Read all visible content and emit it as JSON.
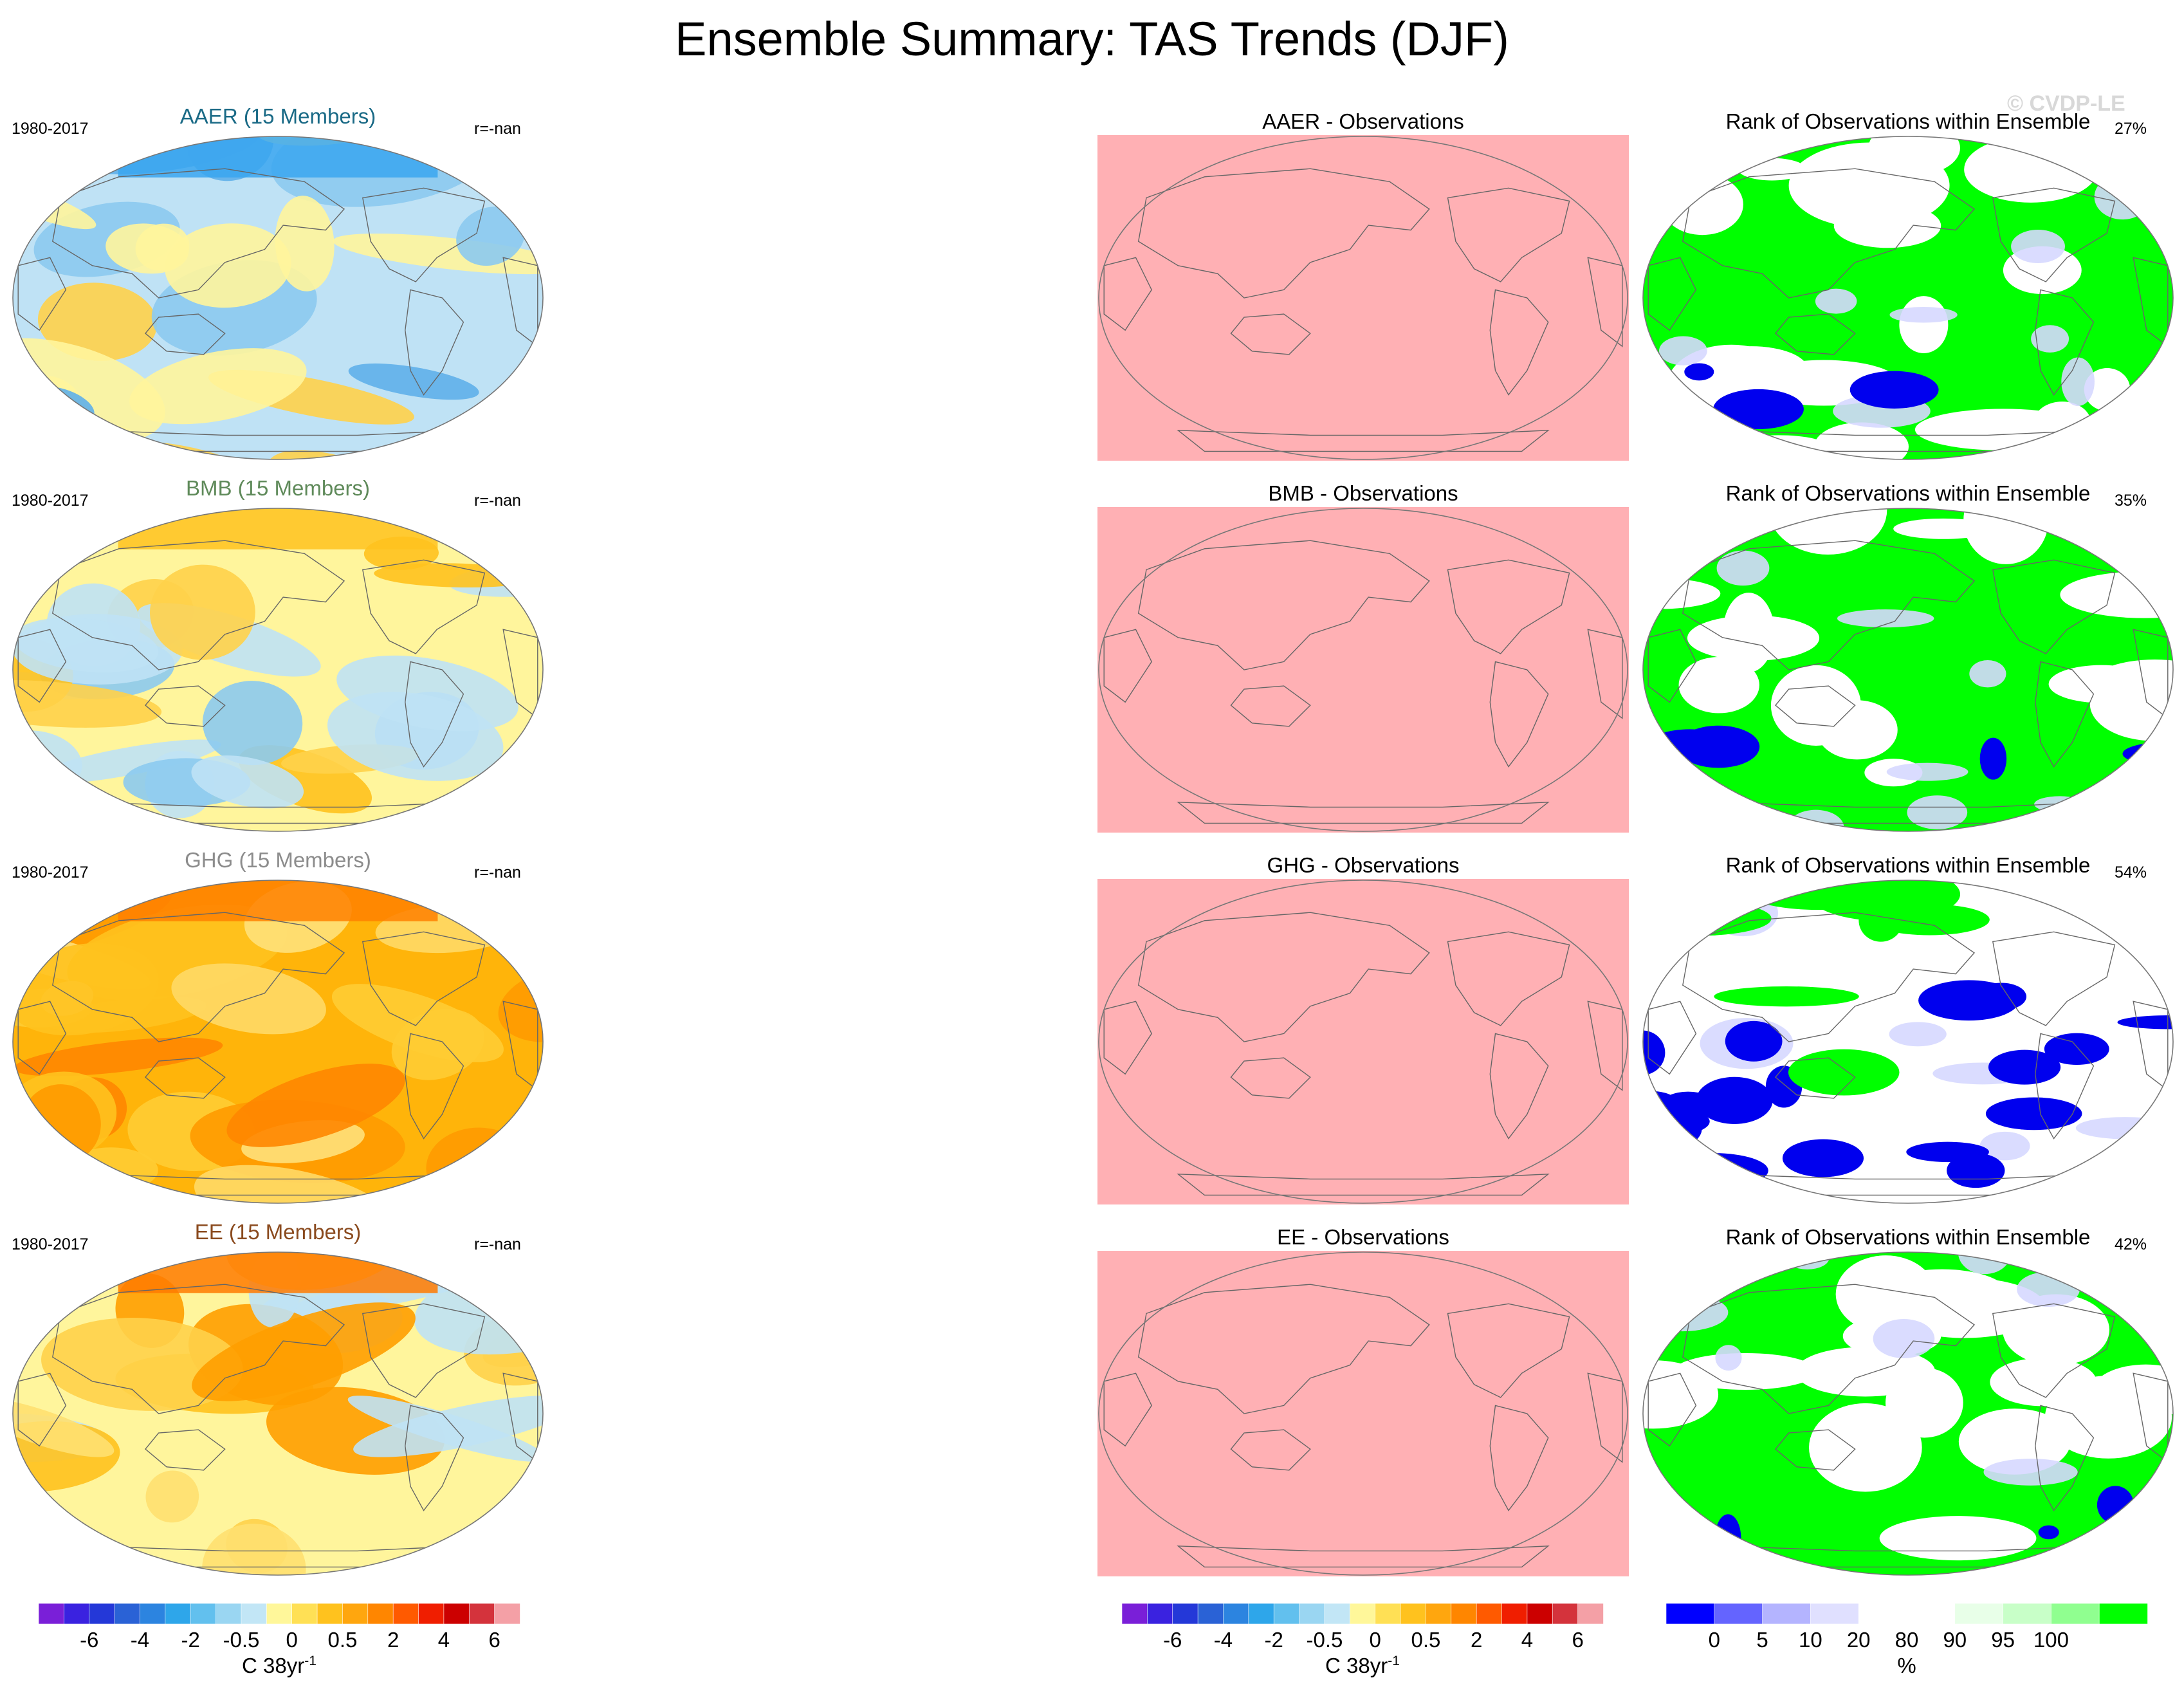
{
  "title": "Ensemble Summary: TAS Trends (DJF)",
  "watermark": "© CVDP-LE",
  "rows": [
    {
      "left_title": "AAER (15 Members)",
      "left_title_color": "#1a6a86",
      "years": "1980-2017",
      "r": "r=-nan",
      "mid_title": "AAER - Observations",
      "right_title": "Rank of Observations within Ensemble",
      "pct": "27%",
      "map_palette": "cool",
      "rank_pattern": "aaer"
    },
    {
      "left_title": "BMB (15 Members)",
      "left_title_color": "#5f8a5a",
      "years": "1980-2017",
      "r": "r=-nan",
      "mid_title": "BMB - Observations",
      "right_title": "Rank of Observations within Ensemble",
      "pct": "35%",
      "map_palette": "mixed",
      "rank_pattern": "bmb"
    },
    {
      "left_title": "GHG (15 Members)",
      "left_title_color": "#8c8c8c",
      "years": "1980-2017",
      "r": "r=-nan",
      "mid_title": "GHG - Observations",
      "right_title": "Rank of Observations within Ensemble",
      "pct": "54%",
      "map_palette": "warm",
      "rank_pattern": "ghg"
    },
    {
      "left_title": "EE (15 Members)",
      "left_title_color": "#8a4a1e",
      "years": "1980-2017",
      "r": "r=-nan",
      "mid_title": "EE - Observations",
      "right_title": "Rank of Observations within Ensemble",
      "pct": "42%",
      "map_palette": "yellow",
      "rank_pattern": "ee"
    }
  ],
  "colorbar_trend": {
    "colors": [
      "#7a1fd8",
      "#3a22e0",
      "#2438d8",
      "#2a62d6",
      "#2c84e0",
      "#2ea6ea",
      "#62c0ee",
      "#9ad6f2",
      "#c2e6f6",
      "#fff79a",
      "#ffe055",
      "#ffc21e",
      "#ffa60e",
      "#ff8600",
      "#ff5a00",
      "#f01e00",
      "#cc0000",
      "#d4333c",
      "#f4a0a6"
    ],
    "ticks": [
      "-6",
      "-4",
      "-2",
      "-0.5",
      "0",
      "0.5",
      "2",
      "4",
      "6"
    ],
    "unit": "C 38yr",
    "unit_sup": "-1"
  },
  "colorbar_rank": {
    "colors": [
      "#0000ff",
      "#6464ff",
      "#b4b4ff",
      "#e0e0ff",
      "#ffffff",
      "#ffffff",
      "#e8ffe8",
      "#c8ffc8",
      "#90ff90",
      "#00ff00"
    ],
    "ticks": [
      "0",
      "5",
      "10",
      "20",
      "80",
      "90",
      "95",
      "100"
    ],
    "unit": "%"
  },
  "chart_data": {
    "type": "heatmap",
    "title": "Ensemble Summary: TAS Trends (DJF)",
    "period": "1980-2017",
    "panels": [
      {
        "name": "AAER (15 Members)",
        "r": "r=-nan",
        "rank_percent": 27
      },
      {
        "name": "BMB (15 Members)",
        "r": "r=-nan",
        "rank_percent": 35
      },
      {
        "name": "GHG (15 Members)",
        "r": "r=-nan",
        "rank_percent": 54
      },
      {
        "name": "EE (15 Members)",
        "r": "r=-nan",
        "rank_percent": 42
      }
    ],
    "trend_colorbar_levels": [
      -6,
      -4,
      -2,
      -0.5,
      0,
      0.5,
      2,
      4,
      6
    ],
    "trend_units": "C 38yr-1",
    "rank_colorbar_levels": [
      0,
      5,
      10,
      20,
      80,
      90,
      95,
      100
    ],
    "rank_units": "%"
  }
}
